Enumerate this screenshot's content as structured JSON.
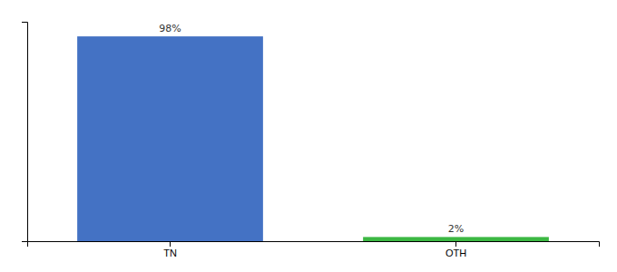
{
  "chart_data": {
    "type": "bar",
    "categories": [
      "TN",
      "OTH"
    ],
    "values": [
      98,
      2
    ],
    "value_labels": [
      "98%",
      "2%"
    ],
    "colors": [
      "#4472C4",
      "#3CB843"
    ],
    "ylim": [
      0,
      105
    ],
    "data_labels": true,
    "tick_labels": "x"
  }
}
